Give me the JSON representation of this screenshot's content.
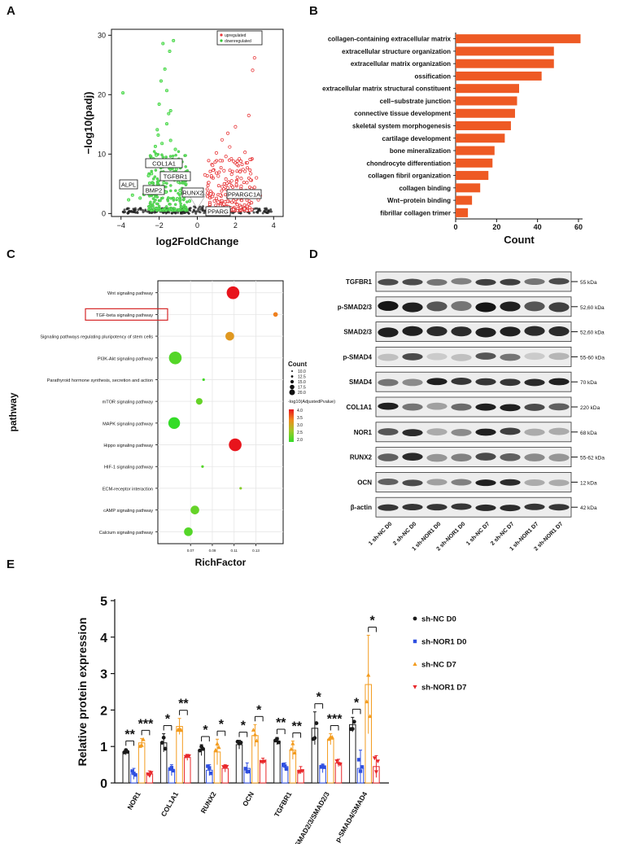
{
  "figure": {
    "panel_letters": [
      "A",
      "B",
      "C",
      "D",
      "E"
    ]
  },
  "chart_data": [
    {
      "panel": "A",
      "type": "scatter",
      "title": "",
      "xlabel": "log2FoldChange",
      "ylabel": "−log10(padj)",
      "xlim": [
        -4.5,
        4.5
      ],
      "ylim": [
        -0.5,
        31
      ],
      "xticks": [
        -4,
        -2,
        0,
        2,
        4
      ],
      "yticks": [
        0,
        10,
        20,
        30
      ],
      "xtick_labels": [
        "−4",
        "−2",
        "0",
        "2",
        "4"
      ],
      "ytick_labels": [
        "0",
        "10",
        "20",
        "30"
      ],
      "legend": [
        {
          "label": "upregulated",
          "color": "#e8393b"
        },
        {
          "label": "downregulated",
          "color": "#2fc62f"
        }
      ],
      "legend_position": "top-right",
      "up_points": [
        [
          0.4,
          6.5
        ],
        [
          0.6,
          5.2
        ],
        [
          0.8,
          8.1
        ],
        [
          1.0,
          10.2
        ],
        [
          1.1,
          6.3
        ],
        [
          1.2,
          3.1
        ],
        [
          1.3,
          12.4
        ],
        [
          1.4,
          7.2
        ],
        [
          1.5,
          9.6
        ],
        [
          1.6,
          4.3
        ],
        [
          1.7,
          11.2
        ],
        [
          1.8,
          5.5
        ],
        [
          1.9,
          8.8
        ],
        [
          2.0,
          14.6
        ],
        [
          2.1,
          6.1
        ],
        [
          2.2,
          9.2
        ],
        [
          2.3,
          4.6
        ],
        [
          2.4,
          7.4
        ],
        [
          2.5,
          10.3
        ],
        [
          2.6,
          5.2
        ],
        [
          2.7,
          16.5
        ],
        [
          2.8,
          3.7
        ],
        [
          2.9,
          24.1
        ],
        [
          3.0,
          26.2
        ],
        [
          3.1,
          6.0
        ],
        [
          3.2,
          2.3
        ],
        [
          2.0,
          2.4
        ],
        [
          1.7,
          2.9
        ],
        [
          1.4,
          1.6
        ],
        [
          1.1,
          1.9
        ],
        [
          0.9,
          2.1
        ],
        [
          0.7,
          3.3
        ],
        [
          1.3,
          4.5
        ],
        [
          1.5,
          5.8
        ],
        [
          1.8,
          6.6
        ],
        [
          2.1,
          3.8
        ],
        [
          2.3,
          5.9
        ],
        [
          2.5,
          7.1
        ],
        [
          1.2,
          8.9
        ],
        [
          1.6,
          13.5
        ],
        [
          2.6,
          3.1
        ],
        [
          2.8,
          6.7
        ],
        [
          3.0,
          4.4
        ],
        [
          3.3,
          3.0
        ],
        [
          1.9,
          2.2
        ]
      ],
      "down_points": [
        [
          -0.4,
          2.1
        ],
        [
          -0.6,
          3.4
        ],
        [
          -0.8,
          4.2
        ],
        [
          -1.0,
          5.3
        ],
        [
          -1.1,
          7.5
        ],
        [
          -1.2,
          6.2
        ],
        [
          -1.3,
          9.1
        ],
        [
          -1.4,
          12.3
        ],
        [
          -1.5,
          16.8
        ],
        [
          -1.6,
          20.7
        ],
        [
          -1.7,
          24.3
        ],
        [
          -1.8,
          28.6
        ],
        [
          -1.9,
          22.3
        ],
        [
          -2.0,
          18.4
        ],
        [
          -2.1,
          14.1
        ],
        [
          -2.2,
          11.3
        ],
        [
          -2.3,
          9.2
        ],
        [
          -2.4,
          6.7
        ],
        [
          -2.5,
          5.1
        ],
        [
          -2.6,
          8.4
        ],
        [
          -2.7,
          4.3
        ],
        [
          -2.8,
          3.2
        ],
        [
          -3.0,
          2.6
        ],
        [
          -3.2,
          4.7
        ],
        [
          -3.4,
          3.1
        ],
        [
          -3.6,
          2.3
        ],
        [
          -3.9,
          20.3
        ],
        [
          -1.25,
          29.1
        ],
        [
          -1.45,
          27.3
        ],
        [
          -1.15,
          10.8
        ],
        [
          -1.35,
          8.3
        ],
        [
          -1.55,
          6.6
        ],
        [
          -1.75,
          5.2
        ],
        [
          -1.95,
          7.9
        ],
        [
          -2.15,
          9.8
        ],
        [
          -0.9,
          3.9
        ],
        [
          -0.7,
          2.8
        ],
        [
          -1.05,
          2.5
        ],
        [
          -1.65,
          3.6
        ],
        [
          -2.35,
          3.3
        ],
        [
          -2.55,
          6.4
        ],
        [
          -1.85,
          11.8
        ],
        [
          -2.05,
          13.2
        ],
        [
          -1.6,
          15.1
        ],
        [
          -1.4,
          17.3
        ]
      ],
      "annotations": [
        {
          "label": "COL1A1"
        },
        {
          "label": "TGFBR1"
        },
        {
          "label": "ALPL"
        },
        {
          "label": "BMP2"
        },
        {
          "label": "RUNX2"
        },
        {
          "label": "PPARGC1A"
        },
        {
          "label": "PPARG"
        }
      ]
    },
    {
      "panel": "B",
      "type": "bar",
      "orientation": "horizontal",
      "title": "",
      "xlabel": "Count",
      "ylabel": "",
      "xlim": [
        0,
        62
      ],
      "xticks": [
        0,
        20,
        40,
        60
      ],
      "color": "#ee5a24",
      "categories": [
        "collagen-containing extracellular matrix",
        "extracellular structure organization",
        "extracellular matrix organization",
        "ossification",
        "extracellular matrix structural constituent",
        "cell−substrate junction",
        "connective tissue development",
        "skeletal system morphogenesis",
        "cartilage development",
        "bone mineralization",
        "chondrocyte differentiation",
        "collagen fibril organization",
        "collagen binding",
        "Wnt−protein binding",
        "fibrillar collagen trimer"
      ],
      "values": [
        61,
        48,
        48,
        42,
        31,
        30,
        29,
        27,
        24,
        19,
        18,
        16,
        12,
        8,
        6
      ]
    },
    {
      "panel": "C",
      "type": "scatter",
      "subtype": "bubble",
      "title": "",
      "xlabel": "RichFactor",
      "ylabel": "pathway",
      "xlim": [
        0.04,
        0.155
      ],
      "xticks": [
        0.07,
        0.09,
        0.11,
        0.13
      ],
      "xtick_labels": [
        "0.07",
        "0.09",
        "0.11",
        "0.13"
      ],
      "size_legend_title": "Count",
      "size_legend": [
        10.0,
        12.5,
        15.0,
        17.5,
        20.0
      ],
      "size_legend_labels": [
        "10.0",
        "12.5",
        "15.0",
        "17.5",
        "20.0"
      ],
      "color_legend_title": "-log10(AdjustedPvalue)",
      "color_legend": [
        4.0,
        3.5,
        3.0,
        2.5,
        2.0
      ],
      "color_legend_labels": [
        "4.0",
        "3.5",
        "3.0",
        "2.5",
        "2.0"
      ],
      "highlighted": "TGF-beta signaling pathway",
      "pathways": [
        {
          "name": "Wnt signaling pathway",
          "rich": 0.109,
          "count": 20,
          "padj": 4.0
        },
        {
          "name": "TGF-beta signaling pathway",
          "rich": 0.148,
          "count": 12,
          "padj": 3.4
        },
        {
          "name": "Signaling pathways regulating pluripotency of stem cells",
          "rich": 0.106,
          "count": 16,
          "padj": 3.2
        },
        {
          "name": "PI3K-Akt signaling pathway",
          "rich": 0.056,
          "count": 20,
          "padj": 2.2
        },
        {
          "name": "Parathyroid hormone synthesis, secretion and action",
          "rich": 0.082,
          "count": 10,
          "padj": 2.1
        },
        {
          "name": "mTOR signaling pathway",
          "rich": 0.078,
          "count": 14,
          "padj": 2.3
        },
        {
          "name": "MAPK signaling pathway",
          "rich": 0.055,
          "count": 19,
          "padj": 1.9
        },
        {
          "name": "Hippo signaling pathway",
          "rich": 0.111,
          "count": 20,
          "padj": 4.0
        },
        {
          "name": "HIF-1 signaling pathway",
          "rich": 0.081,
          "count": 10,
          "padj": 2.2
        },
        {
          "name": "ECM-receptor interaction",
          "rich": 0.116,
          "count": 10,
          "padj": 2.5
        },
        {
          "name": "cAMP signaling pathway",
          "rich": 0.074,
          "count": 16,
          "padj": 2.3
        },
        {
          "name": "Calcium signaling pathway",
          "rich": 0.068,
          "count": 16,
          "padj": 2.2
        }
      ]
    },
    {
      "panel": "E",
      "type": "bar",
      "title": "",
      "xlabel": "",
      "ylabel": "Relative protein expression",
      "ylim": [
        0,
        5
      ],
      "yticks": [
        0,
        1,
        2,
        3,
        4,
        5
      ],
      "categories": [
        "NOR1",
        "COL1A1",
        "RUNX2",
        "OCN",
        "TGFBR1",
        "p-SMAD2/3/SMAD2/3",
        "p-SMAD4/SMAD4"
      ],
      "legend_position": "top-right",
      "series": [
        {
          "name": "sh-NC D0",
          "color": "#1a1a1a",
          "marker": "circle",
          "values": [
            0.85,
            1.1,
            0.9,
            1.05,
            1.15,
            1.5,
            1.6
          ],
          "err": [
            0.08,
            0.25,
            0.15,
            0.12,
            0.1,
            0.45,
            0.2
          ]
        },
        {
          "name": "sh-NOR1 D0",
          "color": "#2f4fe0",
          "marker": "square",
          "values": [
            0.25,
            0.35,
            0.35,
            0.4,
            0.45,
            0.4,
            0.4
          ],
          "err": [
            0.15,
            0.15,
            0.15,
            0.15,
            0.1,
            0.12,
            0.5
          ]
        },
        {
          "name": "sh-NC D7",
          "color": "#f39c1f",
          "marker": "triangle",
          "values": [
            1.1,
            1.55,
            0.85,
            1.3,
            0.9,
            1.2,
            2.7
          ],
          "err": [
            0.12,
            0.22,
            0.35,
            0.3,
            0.25,
            0.15,
            1.35
          ]
        },
        {
          "name": "sh-NOR1 D7",
          "color": "#e8282b",
          "marker": "triangle-down",
          "values": [
            0.25,
            0.7,
            0.4,
            0.6,
            0.35,
            0.55,
            0.45
          ],
          "err": [
            0.08,
            0.08,
            0.1,
            0.08,
            0.1,
            0.1,
            0.3
          ]
        }
      ],
      "significance": [
        {
          "category": "NOR1",
          "left": "**",
          "right": "***"
        },
        {
          "category": "COL1A1",
          "left": "*",
          "right": "**"
        },
        {
          "category": "RUNX2",
          "left": "*",
          "right": "*"
        },
        {
          "category": "OCN",
          "left": "*",
          "right": "*"
        },
        {
          "category": "TGFBR1",
          "left": "**",
          "right": "**"
        },
        {
          "category": "p-SMAD2/3/SMAD2/3",
          "left": "*",
          "right": "***"
        },
        {
          "category": "p-SMAD4/SMAD4",
          "left": "*",
          "right": "*"
        }
      ]
    }
  ],
  "western": {
    "panel": "D",
    "proteins": [
      {
        "name": "TGFBR1",
        "kda": "55 kDa",
        "intensity": [
          0.75,
          0.75,
          0.55,
          0.5,
          0.8,
          0.8,
          0.55,
          0.75
        ],
        "width": 0.5
      },
      {
        "name": "p-SMAD2/3",
        "kda": "52,60 kDa",
        "intensity": [
          1.0,
          0.95,
          0.7,
          0.55,
          1.0,
          0.95,
          0.7,
          0.8
        ],
        "width": 1.0
      },
      {
        "name": "SMAD2/3",
        "kda": "52,60 kDa",
        "intensity": [
          0.95,
          0.95,
          0.9,
          0.9,
          0.95,
          0.95,
          0.9,
          0.9
        ],
        "width": 1.0
      },
      {
        "name": "p-SMAD4",
        "kda": "55-60 kDa",
        "intensity": [
          0.2,
          0.75,
          0.15,
          0.2,
          0.7,
          0.55,
          0.15,
          0.25
        ],
        "width": 0.6
      },
      {
        "name": "SMAD4",
        "kda": "70 kDa",
        "intensity": [
          0.55,
          0.45,
          0.95,
          0.85,
          0.85,
          0.85,
          0.9,
          0.95
        ],
        "width": 0.6
      },
      {
        "name": "COL1A1",
        "kda": "220 kDa",
        "intensity": [
          0.95,
          0.55,
          0.35,
          0.6,
          0.95,
          0.95,
          0.75,
          0.65
        ],
        "width": 0.6
      },
      {
        "name": "NOR1",
        "kda": "68 kDa",
        "intensity": [
          0.7,
          0.9,
          0.3,
          0.45,
          0.95,
          0.8,
          0.3,
          0.3
        ],
        "width": 0.6
      },
      {
        "name": "RUNX2",
        "kda": "55-62 kDa",
        "intensity": [
          0.65,
          0.9,
          0.4,
          0.5,
          0.75,
          0.65,
          0.45,
          0.4
        ],
        "width": 0.7
      },
      {
        "name": "OCN",
        "kda": "12 kDa",
        "intensity": [
          0.65,
          0.75,
          0.35,
          0.5,
          0.95,
          0.9,
          0.3,
          0.3
        ],
        "width": 0.5
      },
      {
        "name": "β-actin",
        "kda": "42 kDa",
        "intensity": [
          0.85,
          0.85,
          0.85,
          0.85,
          0.9,
          0.9,
          0.85,
          0.85
        ],
        "width": 0.5
      }
    ],
    "lanes": [
      "1 sh-NC D0",
      "2 sh-NC D0",
      "1 sh-NOR1 D0",
      "2 sh-NOR1 D0",
      "1 sh-NC D7",
      "2 sh-NC D7",
      "1 sh-NOR1 D7",
      "2 sh-NOR1 D7"
    ]
  }
}
